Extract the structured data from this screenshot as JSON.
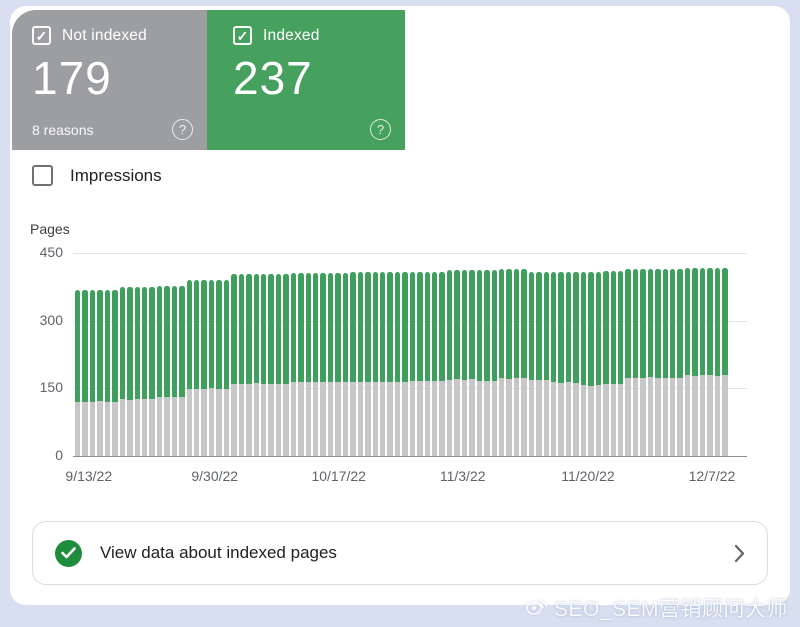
{
  "cards": {
    "not_indexed": {
      "label": "Not indexed",
      "value": "179",
      "sub": "8 reasons",
      "checked": true,
      "color": "#9c9ea1"
    },
    "indexed": {
      "label": "Indexed",
      "value": "237",
      "checked": true,
      "color": "#46a05e"
    }
  },
  "impressions": {
    "label": "Impressions",
    "checked": false
  },
  "chart_data": {
    "type": "bar",
    "stacked": true,
    "ylabel": "Pages",
    "ylim": [
      0,
      450
    ],
    "yticks": [
      0,
      150,
      300,
      450
    ],
    "grid": true,
    "legend_position": "none",
    "xticks": [
      {
        "label": "9/13/22",
        "pct": 2.1
      },
      {
        "label": "9/30/22",
        "pct": 21.3
      },
      {
        "label": "10/17/22",
        "pct": 40.2
      },
      {
        "label": "11/3/22",
        "pct": 59.1
      },
      {
        "label": "11/20/22",
        "pct": 78.2
      },
      {
        "label": "12/7/22",
        "pct": 97.1
      }
    ],
    "series": [
      {
        "name": "Not indexed",
        "color": "#c7c7c7",
        "values": [
          120,
          120,
          119,
          121,
          120,
          120,
          126,
          125,
          126,
          127,
          126,
          131,
          130,
          131,
          131,
          149,
          148,
          149,
          150,
          149,
          149,
          160,
          159,
          160,
          161,
          160,
          160,
          159,
          160,
          163,
          163,
          164,
          163,
          164,
          163,
          164,
          163,
          165,
          164,
          165,
          165,
          164,
          165,
          165,
          164,
          167,
          166,
          167,
          167,
          166,
          169,
          170,
          169,
          170,
          166,
          167,
          166,
          172,
          171,
          172,
          172,
          169,
          168,
          169,
          163,
          162,
          163,
          162,
          157,
          156,
          157,
          160,
          159,
          160,
          174,
          173,
          174,
          175,
          174,
          174,
          173,
          174,
          179,
          178,
          179,
          179,
          178,
          179
        ]
      },
      {
        "name": "Indexed",
        "color": "#3fa05e",
        "values": [
          247,
          247,
          248,
          246,
          247,
          247,
          248,
          249,
          248,
          247,
          248,
          246,
          247,
          246,
          246,
          242,
          243,
          242,
          241,
          242,
          242,
          243,
          244,
          243,
          242,
          243,
          243,
          244,
          243,
          242,
          242,
          241,
          242,
          241,
          242,
          241,
          242,
          242,
          243,
          242,
          242,
          243,
          242,
          242,
          243,
          242,
          243,
          242,
          242,
          243,
          243,
          242,
          243,
          242,
          246,
          245,
          246,
          242,
          243,
          242,
          242,
          239,
          240,
          239,
          244,
          245,
          244,
          245,
          252,
          253,
          252,
          250,
          251,
          250,
          240,
          241,
          240,
          239,
          240,
          240,
          241,
          240,
          237,
          238,
          237,
          237,
          238,
          237
        ]
      }
    ]
  },
  "footer_card": {
    "label": "View data about indexed pages"
  },
  "watermark": {
    "text": "SEO_SEM营销顾问大师"
  },
  "icons": {
    "checkbox_check": "✓",
    "question_mark": "?"
  }
}
